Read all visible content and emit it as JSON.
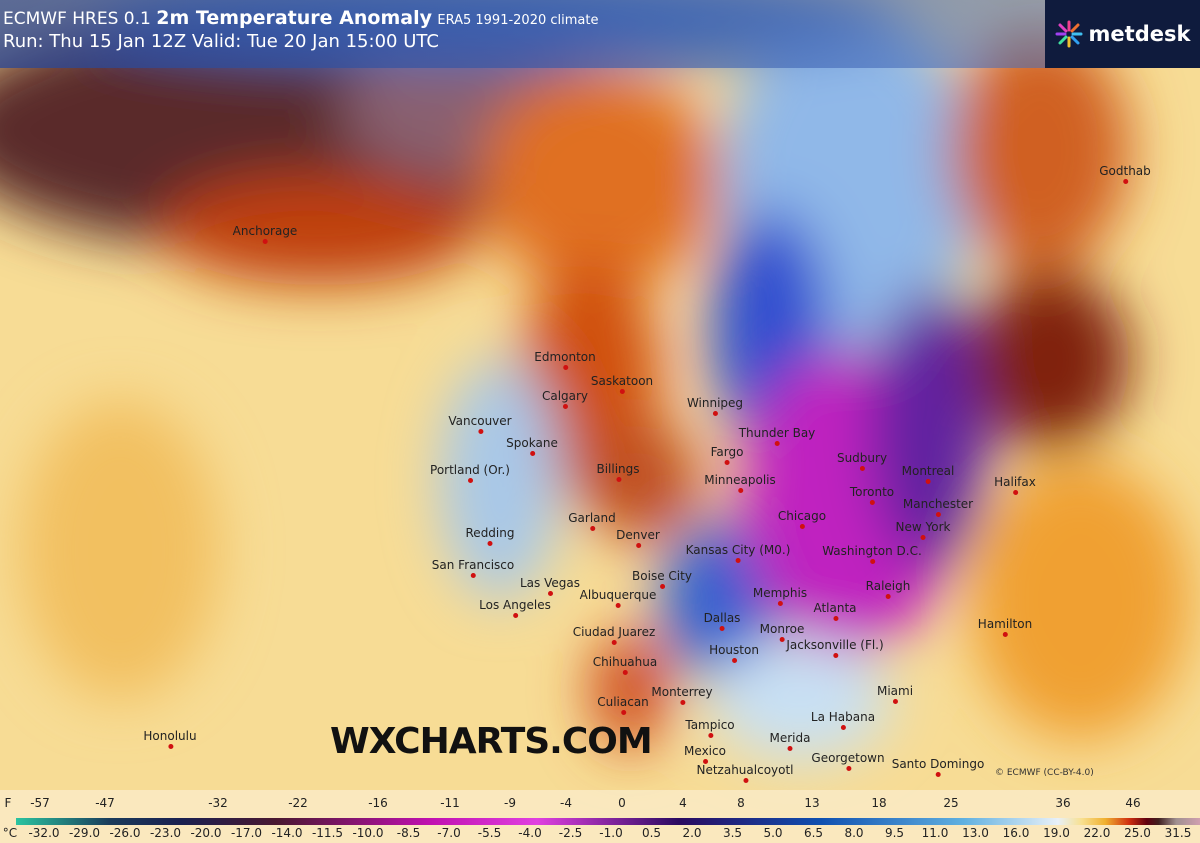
{
  "header": {
    "model": "ECMWF HRES 0.1",
    "product": "2m Temperature Anomaly",
    "climate": "ERA5 1991-2020 climate",
    "run_line": "Run: Thu 15 Jan 12Z Valid: Tue 20 Jan 15:00 UTC"
  },
  "logo": {
    "text": "metdesk",
    "icon": "starburst-logo-icon"
  },
  "watermark": "WXCHARTS.COM",
  "copyright": "© ECMWF (CC-BY-4.0)",
  "cities": [
    "Anchorage",
    "Edmonton",
    "Calgary",
    "Saskatoon",
    "Winnipeg",
    "Vancouver",
    "Spokane",
    "Portland (Or.)",
    "Billings",
    "Fargo",
    "Minneapolis",
    "Thunder Bay",
    "Sudbury",
    "Montreal",
    "Toronto",
    "Manchester",
    "Chicago",
    "New York",
    "Washington D.C.",
    "Garland",
    "Redding",
    "Denver",
    "Kansas City (M0.)",
    "San Francisco",
    "Boise City",
    "Las Vegas",
    "Albuquerque",
    "Memphis",
    "Atlanta",
    "Raleigh",
    "Los Angeles",
    "Dallas",
    "Monroe",
    "Ciudad Juarez",
    "Houston",
    "Jacksonville (Fl.)",
    "Chihuahua",
    "Monterrey",
    "Culiacan",
    "Miami",
    "La Habana",
    "Tampico",
    "Merida",
    "Mexico",
    "Georgetown",
    "Netzahualcoyotl",
    "Santo Domingo",
    "Hamilton",
    "Honolulu",
    "Godthab",
    "Halifax"
  ],
  "legend": {
    "f_unit": "F",
    "c_unit": "°C",
    "f_labels": [
      "-57",
      "-47",
      "-32",
      "-22",
      "-16",
      "-11",
      "-9",
      "-4",
      "0",
      "4",
      "8",
      "13",
      "18",
      "25",
      "36",
      "46"
    ],
    "c_labels": [
      "-32.0",
      "-29.0",
      "-26.0",
      "-23.0",
      "-20.0",
      "-17.0",
      "-14.0",
      "-11.5",
      "-10.0",
      "-8.5",
      "-7.0",
      "-5.5",
      "-4.0",
      "-2.5",
      "-1.0",
      "0.5",
      "2.0",
      "3.5",
      "5.0",
      "6.5",
      "8.0",
      "9.5",
      "11.0",
      "13.0",
      "16.0",
      "19.0",
      "22.0",
      "25.0",
      "31.5"
    ]
  }
}
